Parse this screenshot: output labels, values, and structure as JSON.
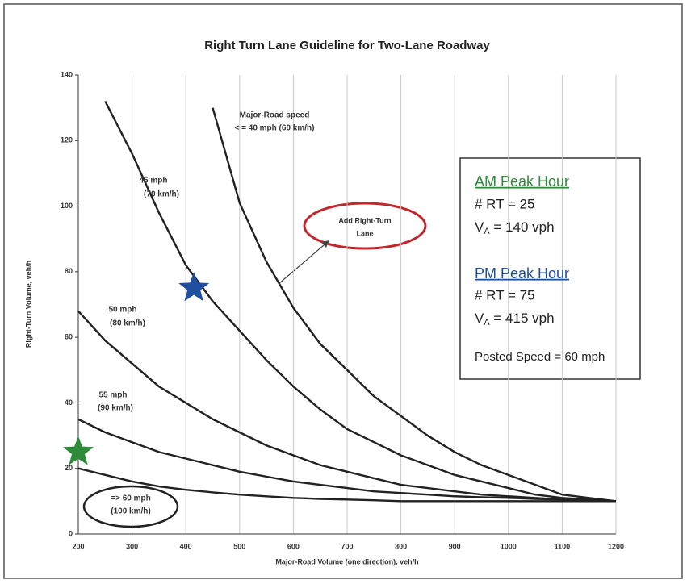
{
  "chart_data": {
    "type": "line",
    "title": "Right Turn Lane Guideline for Two-Lane Roadway",
    "xlabel": "Major-Road Volume (one direction), veh/h",
    "ylabel": "Right-Turn Volume, veh/h",
    "x": [
      200,
      250,
      300,
      350,
      400,
      450,
      500,
      550,
      600,
      650,
      700,
      750,
      800,
      850,
      900,
      950,
      1000,
      1050,
      1100,
      1150,
      1200
    ],
    "series": [
      {
        "name": "<= 40 mph",
        "color": "#222222",
        "values": [
          null,
          null,
          null,
          null,
          null,
          130,
          101,
          83,
          69,
          58,
          50,
          42,
          36,
          30,
          25,
          21,
          18,
          15,
          12,
          11,
          10
        ]
      },
      {
        "name": "45 mph",
        "color": "#222222",
        "values": [
          null,
          132,
          116,
          98,
          82,
          71,
          62,
          53,
          45,
          38,
          32,
          28,
          24,
          21,
          18,
          16,
          14,
          12,
          11,
          10.5,
          10
        ]
      },
      {
        "name": "50 mph",
        "color": "#222222",
        "values": [
          68,
          59,
          52,
          45,
          40,
          35,
          31,
          27,
          24,
          21,
          19,
          17,
          15,
          14,
          13,
          12,
          11.5,
          11,
          10.5,
          10.2,
          10
        ]
      },
      {
        "name": "55 mph",
        "color": "#222222",
        "values": [
          35,
          31,
          28,
          25,
          23,
          21,
          19,
          17.5,
          16,
          15,
          14,
          13,
          12.5,
          12,
          11.5,
          11.2,
          11,
          10.7,
          10.5,
          10.2,
          10
        ]
      },
      {
        "name": "60 mph",
        "color": "#222222",
        "values": [
          20,
          18,
          16,
          14.5,
          13.5,
          12.7,
          12,
          11.5,
          11,
          10.7,
          10.5,
          10.3,
          10,
          10,
          10,
          10,
          10,
          10,
          10,
          10,
          10
        ]
      }
    ],
    "points": [
      {
        "name": "AM Peak Hour",
        "x": 200,
        "y": 25,
        "color": "#2e8b3a"
      },
      {
        "name": "PM Peak Hour",
        "x": 415,
        "y": 75,
        "color": "#1f4fa0"
      }
    ],
    "xlim": [
      200,
      1200
    ],
    "ylim": [
      0,
      140
    ],
    "xticks": [
      200,
      300,
      400,
      500,
      600,
      700,
      800,
      900,
      1000,
      1100,
      1200
    ],
    "yticks": [
      0,
      20,
      40,
      60,
      80,
      100,
      120,
      140
    ],
    "grid": "x",
    "annotations": [
      "Major-Road speed",
      "< = 40 mph (60 km/h)",
      "45 mph",
      "(70 km/h)",
      "50 mph",
      "(80 km/h)",
      "55 mph",
      "(90 km/h)",
      "=> 60 mph",
      "(100 km/h)",
      "Add Right-Turn",
      "Lane"
    ],
    "info_box": {
      "am_heading": "AM Peak Hour",
      "am_rt": "# RT = 25",
      "am_v": {
        "label": "V",
        "sub": "A",
        "text": " = 140 vph"
      },
      "pm_heading": "PM Peak Hour",
      "pm_rt": "# RT = 75",
      "pm_v": {
        "label": "V",
        "sub": "A",
        "text": " = 415 vph"
      },
      "posted": "Posted Speed = 60 mph"
    }
  }
}
